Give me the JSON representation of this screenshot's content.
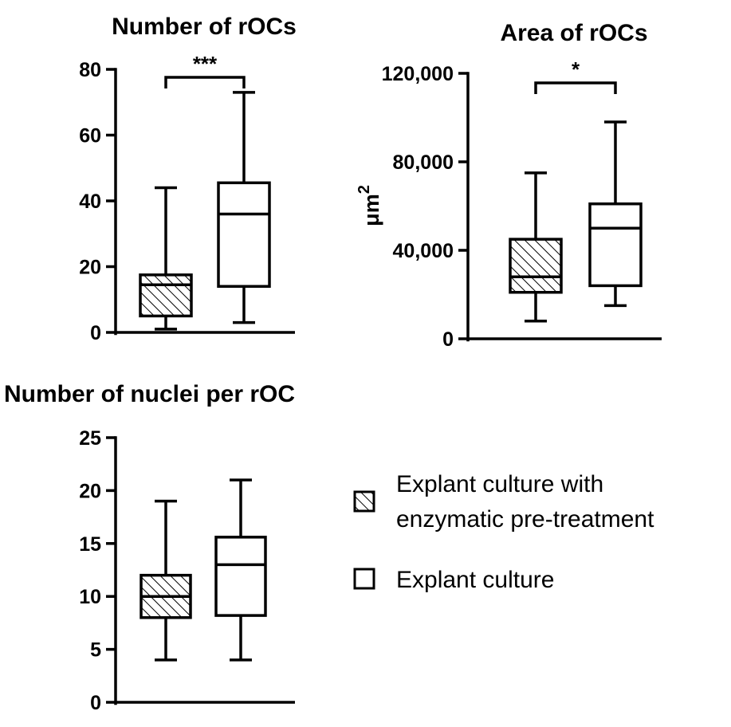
{
  "chart_data": [
    {
      "type": "box",
      "title": "Number of rOCs",
      "ylabel": "",
      "ylim": [
        0,
        80
      ],
      "yticks": [
        0,
        20,
        40,
        60,
        80
      ],
      "ytick_labels": [
        "0",
        "20",
        "40",
        "60",
        "80"
      ],
      "grid": false,
      "series": [
        {
          "name": "Explant culture with enzymatic pre-treatment",
          "min": 1,
          "q1": 5,
          "median": 14.5,
          "q3": 17.5,
          "max": 44
        },
        {
          "name": "Explant culture",
          "min": 3,
          "q1": 14,
          "median": 36,
          "q3": 45.5,
          "max": 73
        }
      ],
      "annotation": "***"
    },
    {
      "type": "box",
      "title": "Area of rOCs",
      "ylabel": "μm",
      "ylabel_superscript": "2",
      "ylim": [
        0,
        120000
      ],
      "yticks": [
        0,
        40000,
        80000,
        120000
      ],
      "ytick_labels": [
        "0",
        "40,000",
        "80,000",
        "120,000"
      ],
      "grid": false,
      "series": [
        {
          "name": "Explant culture with enzymatic pre-treatment",
          "min": 8000,
          "q1": 21000,
          "median": 28000,
          "q3": 45000,
          "max": 75000
        },
        {
          "name": "Explant culture",
          "min": 15000,
          "q1": 24000,
          "median": 50000,
          "q3": 61000,
          "max": 98000
        }
      ],
      "annotation": "*"
    },
    {
      "type": "box",
      "title": "Number of nuclei per rOC",
      "ylabel": "",
      "ylim": [
        0,
        25
      ],
      "yticks": [
        0,
        5,
        10,
        15,
        20,
        25
      ],
      "ytick_labels": [
        "0",
        "5",
        "10",
        "15",
        "20",
        "25"
      ],
      "grid": false,
      "series": [
        {
          "name": "Explant culture with enzymatic pre-treatment",
          "min": 4,
          "q1": 8,
          "median": 10,
          "q3": 12,
          "max": 19
        },
        {
          "name": "Explant culture",
          "min": 4,
          "q1": 8.2,
          "median": 13,
          "q3": 15.6,
          "max": 21
        }
      ],
      "annotation": ""
    }
  ],
  "legend": {
    "placement": "bottom-right",
    "items": [
      {
        "lines": [
          "Explant culture with",
          "enzymatic pre-treatment"
        ],
        "pattern": "hatched"
      },
      {
        "lines": [
          "Explant culture"
        ],
        "pattern": "open"
      }
    ]
  }
}
